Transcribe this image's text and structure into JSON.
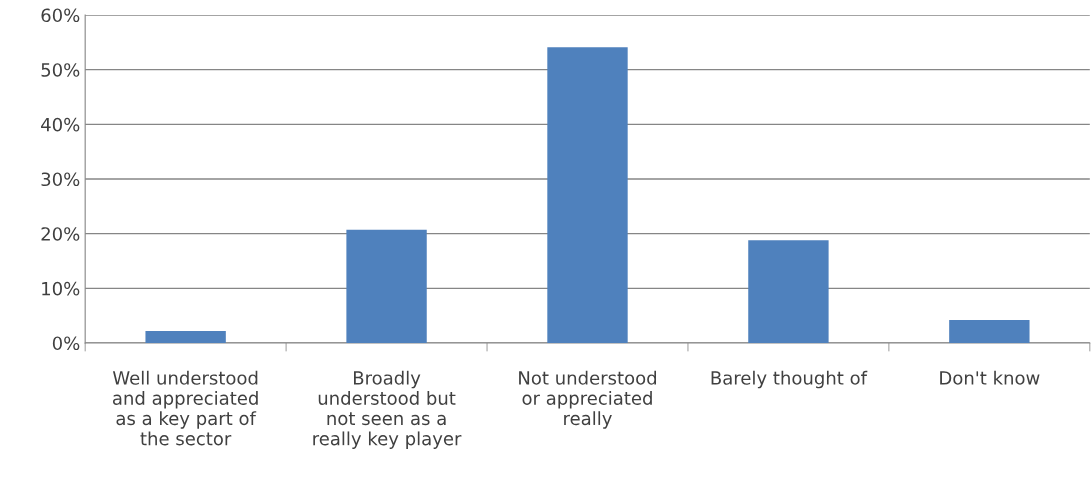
{
  "chart_data": {
    "type": "bar",
    "categories": [
      "Well understood\nand appreciated\nas a key part of\nthe sector",
      "Broadly\nunderstood but\nnot seen as a\nreally key player",
      "Not understood\nor appreciated\nreally",
      "Barely thought of",
      "Don't know"
    ],
    "values": [
      2.2,
      20.7,
      54.1,
      18.8,
      4.2
    ],
    "color": "#4f81bd",
    "ylim": [
      0,
      60
    ],
    "yticks": [
      {
        "value": 0,
        "label": "0%"
      },
      {
        "value": 10,
        "label": "10%"
      },
      {
        "value": 20,
        "label": "20%"
      },
      {
        "value": 30,
        "label": "30%"
      },
      {
        "value": 40,
        "label": "40%"
      },
      {
        "value": 50,
        "label": "50%"
      },
      {
        "value": 60,
        "label": "60%"
      }
    ],
    "grid": "y"
  }
}
